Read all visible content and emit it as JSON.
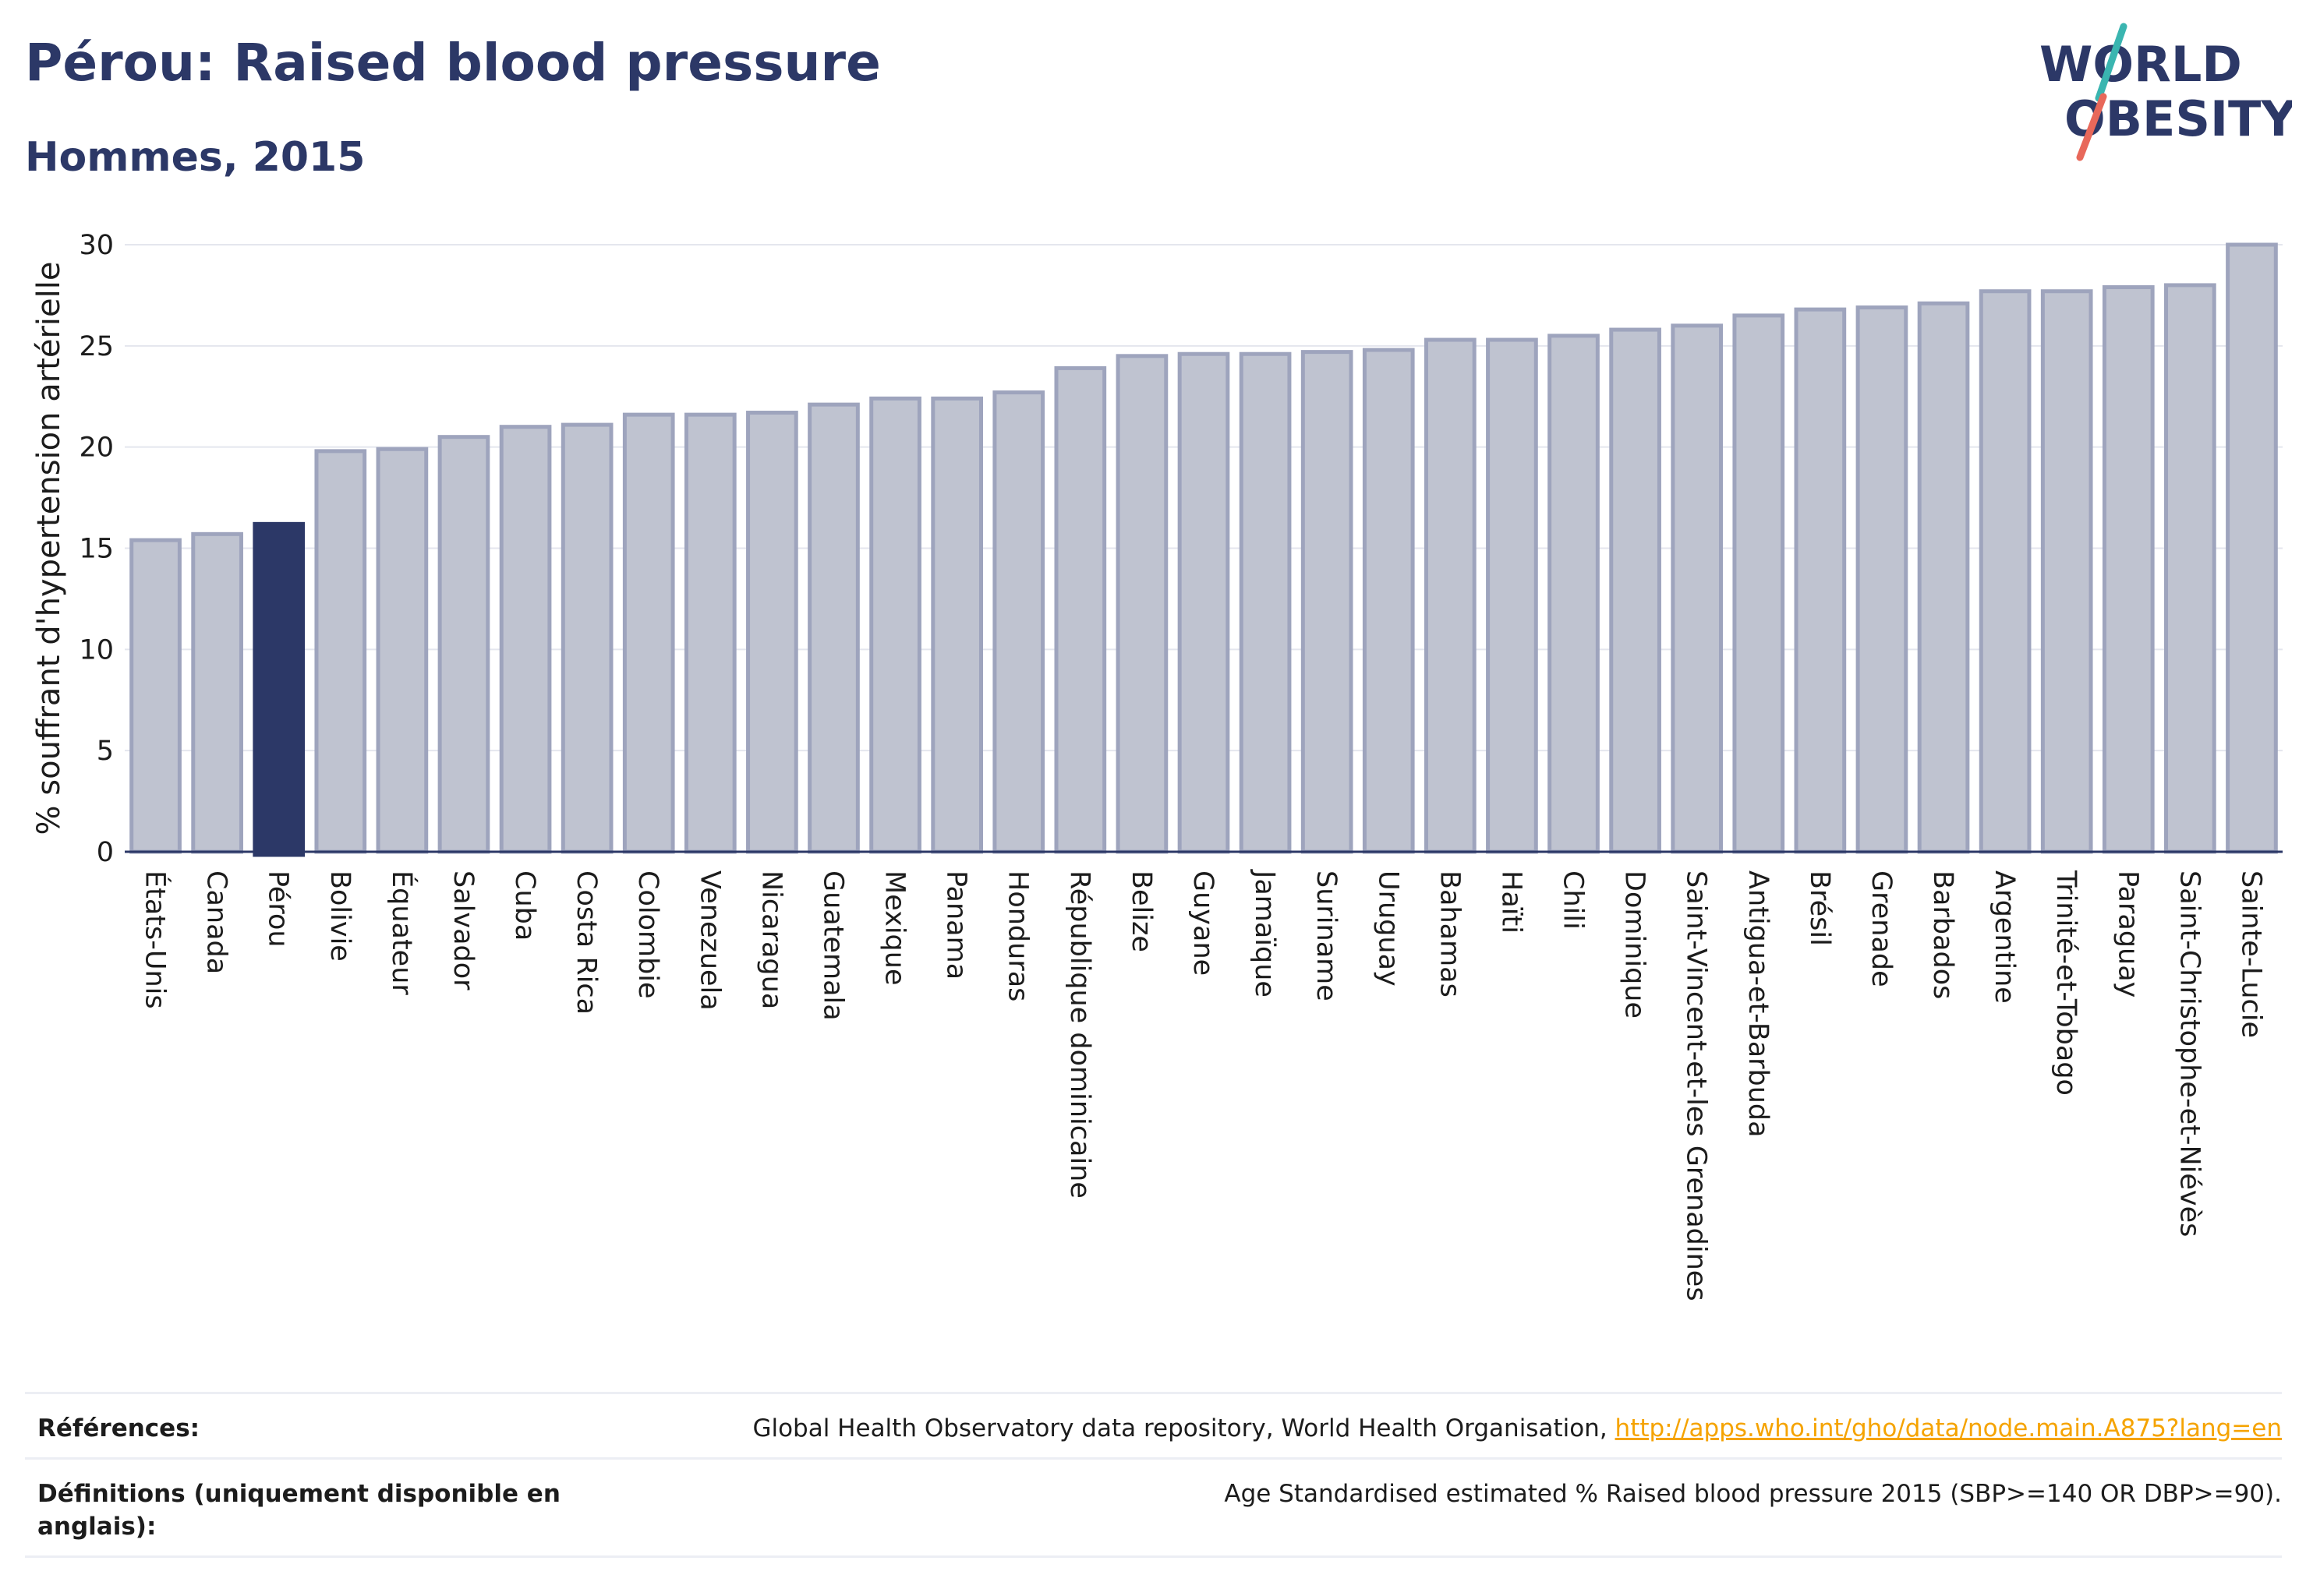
{
  "header": {
    "title": "Pérou: Raised blood pressure",
    "subtitle": "Hommes, 2015"
  },
  "logo": {
    "line1": "WORLD",
    "line2": "OBESITY"
  },
  "colors": {
    "bar": "#bfc3d0",
    "bar_border": "#9ea4bd",
    "highlight": "#2c3867",
    "grid": "#e4e6ee",
    "axis": "#2c3867",
    "link": "#f5a300"
  },
  "chart_data": {
    "type": "bar",
    "ylabel": "% souffrant d'hypertension artérielle",
    "ylim": [
      0,
      30
    ],
    "yticks": [
      0,
      5,
      10,
      15,
      20,
      25,
      30
    ],
    "grid": true,
    "highlight": "Pérou",
    "categories": [
      "États-Unis",
      "Canada",
      "Pérou",
      "Bolivie",
      "Équateur",
      "Salvador",
      "Cuba",
      "Costa Rica",
      "Colombie",
      "Venezuela",
      "Nicaragua",
      "Guatemala",
      "Mexique",
      "Panama",
      "Honduras",
      "République dominicaine",
      "Belize",
      "Guyane",
      "Jamaïque",
      "Suriname",
      "Uruguay",
      "Bahamas",
      "Haïti",
      "Chili",
      "Dominique",
      "Saint-Vincent-et-les Grenadines",
      "Antigua-et-Barbuda",
      "Brésil",
      "Grenade",
      "Barbados",
      "Argentine",
      "Trinité-et-Tobago",
      "Paraguay",
      "Saint-Christophe-et-Niévès",
      "Sainte-Lucie"
    ],
    "values": [
      15.4,
      15.7,
      16.2,
      19.8,
      19.9,
      20.5,
      21.0,
      21.1,
      21.6,
      21.6,
      21.7,
      22.1,
      22.4,
      22.4,
      22.7,
      23.9,
      24.5,
      24.6,
      24.6,
      24.7,
      24.8,
      25.3,
      25.3,
      25.5,
      25.8,
      26.0,
      26.5,
      26.8,
      26.9,
      27.1,
      27.7,
      27.7,
      27.9,
      28.0,
      30.0
    ]
  },
  "footer": {
    "references_label": "Références:",
    "references_text": "Global Health Observatory data repository, World Health Organisation, ",
    "references_link": "http://apps.who.int/gho/data/node.main.A875?lang=en",
    "definitions_label": "Définitions (uniquement disponible en anglais):",
    "definitions_text": "Age Standardised estimated % Raised blood pressure 2015 (SBP>=140 OR DBP>=90)."
  }
}
